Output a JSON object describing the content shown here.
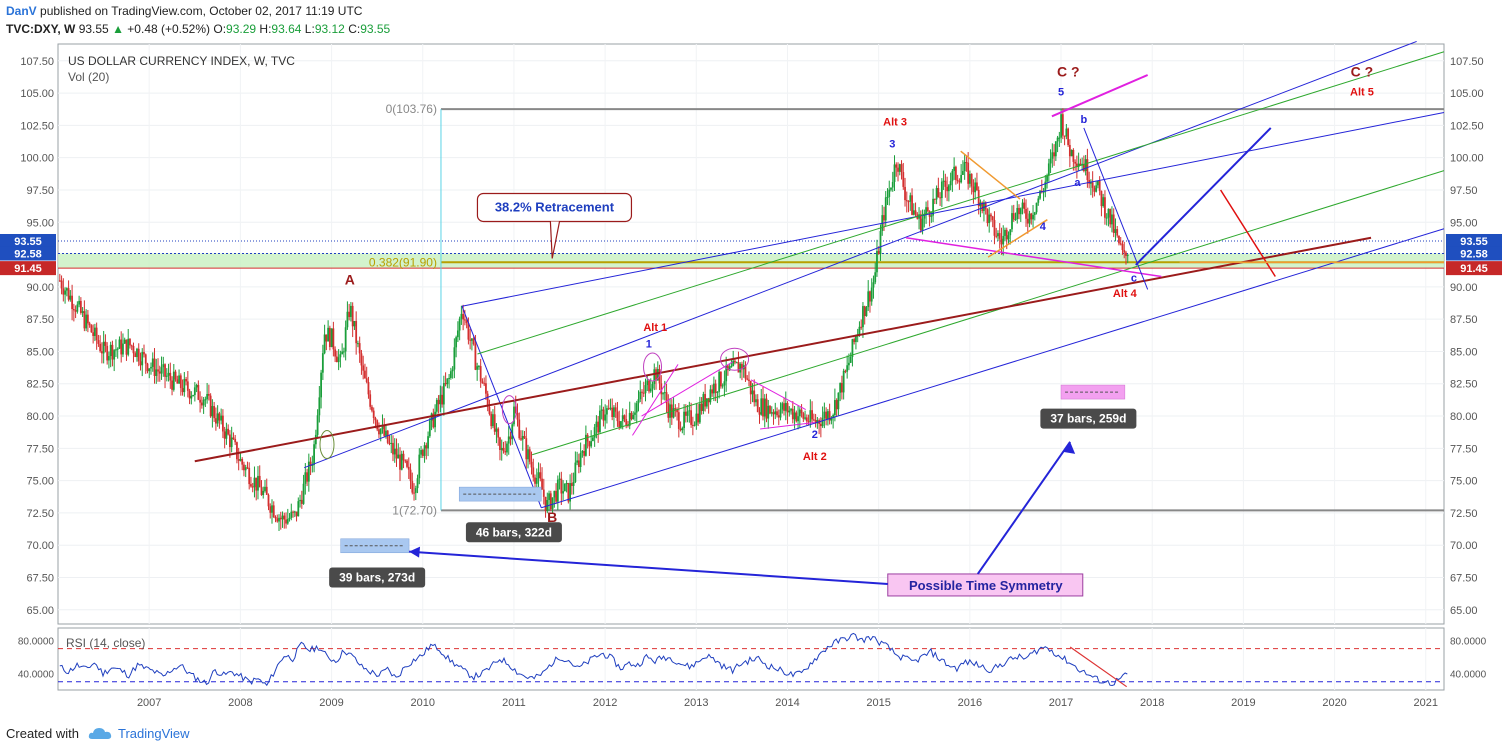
{
  "header": {
    "author": "DanV",
    "published": "published on TradingView.com, October 02, 2017 11:19 UTC",
    "symbol": "TVC:DXY, W",
    "price": "93.55",
    "change": "+0.48 (+0.52%)",
    "o_label": "O:",
    "o_value": "93.29",
    "h_label": "H:",
    "h_value": "93.64",
    "l_label": "L:",
    "l_value": "93.12",
    "c_label": "C:",
    "c_value": "93.55"
  },
  "footer": {
    "created": "Created with",
    "brand": "TradingView"
  },
  "colors": {
    "up": "#1a9e3a",
    "down": "#d32f2f",
    "channel_blue": "#2424d8",
    "channel_green": "#2ea82e",
    "trend_red": "#9b1b1b",
    "magenta": "#e020e0",
    "orange": "#f09a30",
    "rsi": "#1f3fbf"
  },
  "chart_data": {
    "type": "candlestick",
    "title": "US DOLLAR CURRENCY INDEX, W, TVC",
    "indicator_label": "Vol (20)",
    "x_ticks": [
      "2007",
      "2008",
      "2009",
      "2010",
      "2011",
      "2012",
      "2013",
      "2014",
      "2015",
      "2016",
      "2017",
      "2018",
      "2019",
      "2020",
      "2021"
    ],
    "y_ticks": [
      107.5,
      105.0,
      102.5,
      100.0,
      97.5,
      95.0,
      90.0,
      87.5,
      85.0,
      82.5,
      80.0,
      77.5,
      75.0,
      72.5,
      70.0,
      67.5,
      65.0
    ],
    "y_tick_labels": [
      "107.50",
      "105.00",
      "102.50",
      "100.00",
      "97.50",
      "95.00",
      "90.00",
      "87.50",
      "85.00",
      "82.50",
      "80.00",
      "77.50",
      "75.00",
      "72.50",
      "70.00",
      "67.50",
      "65.00"
    ],
    "ylim": [
      63.9,
      108.8
    ],
    "xlim": [
      2006.0,
      2021.2
    ],
    "price_keypoints": [
      [
        2006.02,
        90.5
      ],
      [
        2006.2,
        88.5
      ],
      [
        2006.5,
        85.0
      ],
      [
        2006.8,
        85.5
      ],
      [
        2007.0,
        84.0
      ],
      [
        2007.3,
        82.5
      ],
      [
        2007.6,
        81.5
      ],
      [
        2007.9,
        78.0
      ],
      [
        2008.0,
        76.5
      ],
      [
        2008.15,
        75.0
      ],
      [
        2008.3,
        73.5
      ],
      [
        2008.45,
        72.0
      ],
      [
        2008.6,
        72.2
      ],
      [
        2008.8,
        77.0
      ],
      [
        2008.92,
        86.5
      ],
      [
        2009.0,
        86.0
      ],
      [
        2009.1,
        84.0
      ],
      [
        2009.2,
        88.5
      ],
      [
        2009.35,
        83.0
      ],
      [
        2009.5,
        79.5
      ],
      [
        2009.65,
        77.5
      ],
      [
        2009.8,
        76.0
      ],
      [
        2009.9,
        74.5
      ],
      [
        2010.0,
        77.5
      ],
      [
        2010.15,
        80.5
      ],
      [
        2010.3,
        83.0
      ],
      [
        2010.43,
        88.5
      ],
      [
        2010.55,
        85.0
      ],
      [
        2010.7,
        81.5
      ],
      [
        2010.85,
        77.0
      ],
      [
        2010.95,
        78.5
      ],
      [
        2011.0,
        80.5
      ],
      [
        2011.1,
        78.0
      ],
      [
        2011.2,
        76.0
      ],
      [
        2011.3,
        74.5
      ],
      [
        2011.36,
        73.0
      ],
      [
        2011.5,
        74.5
      ],
      [
        2011.6,
        74.0
      ],
      [
        2011.75,
        77.5
      ],
      [
        2011.9,
        79.0
      ],
      [
        2012.0,
        80.5
      ],
      [
        2012.2,
        79.5
      ],
      [
        2012.4,
        81.5
      ],
      [
        2012.55,
        83.5
      ],
      [
        2012.7,
        80.5
      ],
      [
        2012.85,
        79.5
      ],
      [
        2013.0,
        80.0
      ],
      [
        2013.15,
        82.0
      ],
      [
        2013.3,
        83.0
      ],
      [
        2013.5,
        84.0
      ],
      [
        2013.65,
        81.0
      ],
      [
        2013.8,
        80.5
      ],
      [
        2014.0,
        80.5
      ],
      [
        2014.3,
        79.5
      ],
      [
        2014.5,
        80.5
      ],
      [
        2014.65,
        83.5
      ],
      [
        2014.8,
        87.5
      ],
      [
        2014.95,
        90.5
      ],
      [
        2015.05,
        95.5
      ],
      [
        2015.2,
        100.0
      ],
      [
        2015.3,
        97.0
      ],
      [
        2015.45,
        95.0
      ],
      [
        2015.6,
        96.5
      ],
      [
        2015.8,
        98.5
      ],
      [
        2015.95,
        99.0
      ],
      [
        2016.1,
        97.0
      ],
      [
        2016.25,
        94.5
      ],
      [
        2016.35,
        93.5
      ],
      [
        2016.5,
        96.0
      ],
      [
        2016.65,
        95.5
      ],
      [
        2016.8,
        97.5
      ],
      [
        2016.95,
        101.0
      ],
      [
        2017.0,
        103.0
      ],
      [
        2017.1,
        100.5
      ],
      [
        2017.25,
        99.5
      ],
      [
        2017.4,
        97.5
      ],
      [
        2017.55,
        95.0
      ],
      [
        2017.62,
        93.5
      ],
      [
        2017.7,
        92.0
      ],
      [
        2017.75,
        93.55
      ]
    ],
    "current_price": 93.55,
    "price_labels": [
      {
        "value": 93.55,
        "text": "93.55",
        "color": "#1f4fbf"
      },
      {
        "value": 92.58,
        "text": "92.58",
        "color": "#1f4fbf"
      },
      {
        "value": 91.45,
        "text": "91.45",
        "color": "#c62828"
      }
    ],
    "fib_levels": [
      {
        "label": "0(103.76)",
        "value": 103.76
      },
      {
        "label": "0.382(91.90)",
        "value": 91.9
      },
      {
        "label": "1(72.70)",
        "value": 72.7
      }
    ],
    "wave_labels": [
      {
        "t": "A",
        "x": 2009.2,
        "y": 90.2,
        "c": "#9b1b1b"
      },
      {
        "t": "B",
        "x": 2011.42,
        "y": 71.8,
        "c": "#9b1b1b"
      },
      {
        "t": "C ?",
        "x": 2017.08,
        "y": 106.3,
        "c": "#9b1b1b"
      },
      {
        "t": "C ?",
        "x": 2020.3,
        "y": 106.3,
        "c": "#9b1b1b"
      },
      {
        "t": "Alt 5",
        "x": 2020.3,
        "y": 104.8,
        "c": "#e01010"
      },
      {
        "t": "Alt 3",
        "x": 2015.18,
        "y": 102.5,
        "c": "#e01010"
      },
      {
        "t": "Alt 1",
        "x": 2012.55,
        "y": 86.6,
        "c": "#e01010"
      },
      {
        "t": "Alt 2",
        "x": 2014.3,
        "y": 76.6,
        "c": "#e01010"
      },
      {
        "t": "Alt 4",
        "x": 2017.7,
        "y": 89.2,
        "c": "#e01010"
      },
      {
        "t": "1",
        "x": 2012.48,
        "y": 85.3,
        "c": "#2424d8"
      },
      {
        "t": "2",
        "x": 2014.3,
        "y": 78.3,
        "c": "#2424d8"
      },
      {
        "t": "3",
        "x": 2015.15,
        "y": 100.8,
        "c": "#2424d8"
      },
      {
        "t": "4",
        "x": 2016.8,
        "y": 94.4,
        "c": "#2424d8"
      },
      {
        "t": "5",
        "x": 2017.0,
        "y": 104.8,
        "c": "#2424d8"
      },
      {
        "t": "a",
        "x": 2017.18,
        "y": 97.8,
        "c": "#2424d8"
      },
      {
        "t": "b",
        "x": 2017.25,
        "y": 102.7,
        "c": "#2424d8"
      },
      {
        "t": "c",
        "x": 2017.8,
        "y": 90.4,
        "c": "#2424d8"
      }
    ],
    "callouts": {
      "retracement": "38.2% Retracement",
      "time_symmetry": "Possible Time Symmetry",
      "bars_1": "46 bars, 322d",
      "bars_2": "39 bars, 273d",
      "bars_3": "37 bars, 259d"
    },
    "rsi": {
      "label": "RSI (14, close)",
      "ylim": [
        20,
        95
      ],
      "levels": [
        70,
        30
      ],
      "y_tick_labels": [
        "80.0000",
        "40.0000"
      ],
      "values": [
        48,
        42,
        50,
        45,
        53,
        40,
        47,
        44,
        38,
        50,
        46,
        42,
        36,
        45,
        50,
        40,
        33,
        28,
        44,
        38,
        42,
        36,
        30,
        33,
        25,
        45,
        62,
        58,
        75,
        68,
        72,
        60,
        55,
        68,
        60,
        48,
        42,
        38,
        45,
        34,
        48,
        56,
        62,
        74,
        70,
        58,
        50,
        42,
        36,
        40,
        48,
        58,
        52,
        42,
        36,
        34,
        40,
        52,
        60,
        56,
        46,
        52,
        60,
        64,
        58,
        46,
        52,
        50,
        60,
        55,
        60,
        58,
        52,
        48,
        54,
        62,
        56,
        48,
        44,
        52,
        56,
        58,
        50,
        46,
        42,
        38,
        40,
        52,
        62,
        72,
        78,
        82,
        86,
        80,
        84,
        78,
        72,
        62,
        58,
        54,
        60,
        66,
        58,
        50,
        46,
        54,
        52,
        48,
        44,
        50,
        56,
        60,
        58,
        66,
        72,
        68,
        60,
        54,
        46,
        40,
        34,
        30,
        28,
        34,
        40
      ]
    }
  }
}
